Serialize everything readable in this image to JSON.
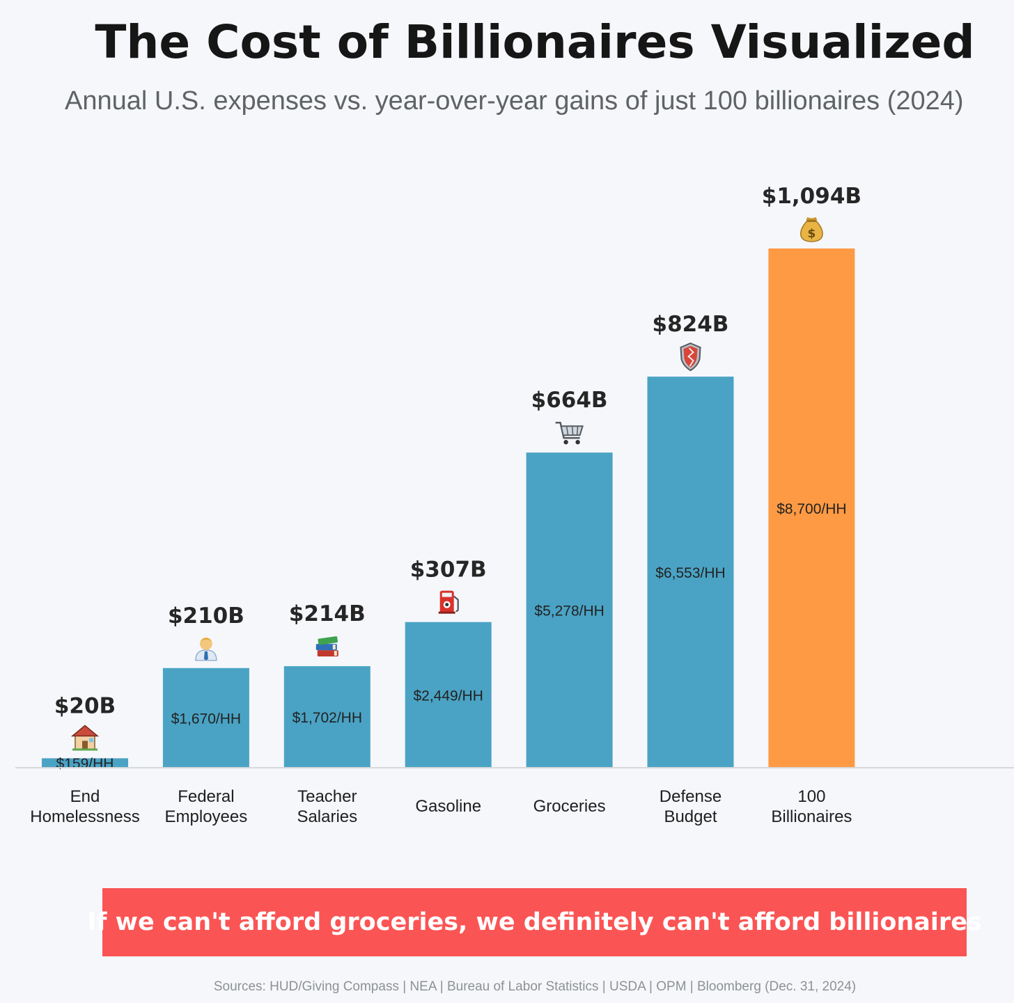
{
  "header": {
    "title": "The Cost of Billionaires Visualized",
    "subtitle": "Annual U.S. expenses vs. year-over-year gains of just 100 billionaires (2024)"
  },
  "chart_data": {
    "type": "bar",
    "title": "The Cost of Billionaires Visualized",
    "subtitle": "Annual U.S. expenses vs. year-over-year gains of just 100 billionaires (2024)",
    "categories": [
      [
        "End",
        "Homelessness"
      ],
      [
        "Federal",
        "Employees"
      ],
      [
        "Teacher",
        "Salaries"
      ],
      [
        "Gasoline"
      ],
      [
        "Groceries"
      ],
      [
        "Defense",
        "Budget"
      ],
      [
        "100",
        "Billionaires"
      ]
    ],
    "values": [
      20,
      210,
      214,
      307,
      664,
      824,
      1094
    ],
    "value_labels": [
      "$20B",
      "$210B",
      "$214B",
      "$307B",
      "$664B",
      "$824B",
      "$1,094B"
    ],
    "per_household_labels": [
      "$159/HH",
      "$1,670/HH",
      "$1,702/HH",
      "$2,449/HH",
      "$5,278/HH",
      "$6,553/HH",
      "$8,700/HH"
    ],
    "icons": [
      "house-icon",
      "office-worker-icon",
      "books-icon",
      "fuel-pump-icon",
      "shopping-cart-icon",
      "shield-icon",
      "money-bag-icon"
    ],
    "bar_colors": [
      "#4aa3c4",
      "#4aa3c4",
      "#4aa3c4",
      "#4aa3c4",
      "#4aa3c4",
      "#4aa3c4",
      "#fe9a43"
    ],
    "unit": "B",
    "ylim": [
      0,
      1094
    ],
    "xlabel": "",
    "ylabel": "",
    "grid": false,
    "legend": "none"
  },
  "callout": {
    "text": "If we can't afford groceries, we definitely can't afford billionaires",
    "color": "#fb5454"
  },
  "footer": {
    "sources": "Sources: HUD/Giving Compass | NEA | Bureau of Labor Statistics | USDA | OPM | Bloomberg (Dec. 31, 2024)"
  }
}
